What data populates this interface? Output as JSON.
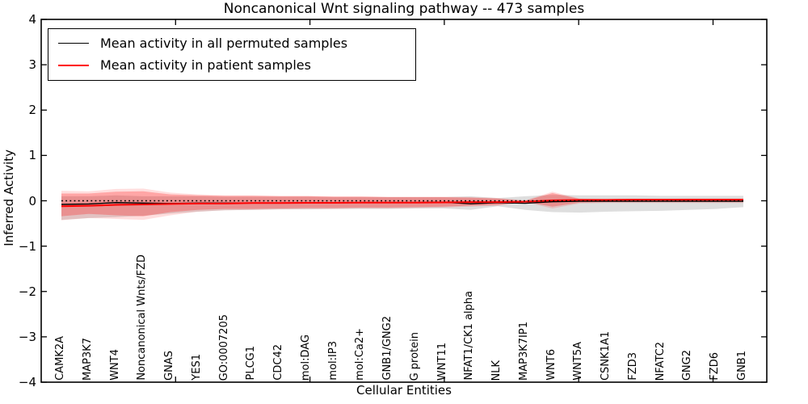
{
  "figure": {
    "title": "Noncanonical Wnt signaling pathway -- 473 samples",
    "xlabel": "Cellular Entities",
    "ylabel": "Inferred Activity"
  },
  "legend": {
    "entries": [
      {
        "label": "Mean activity in all permuted samples",
        "color": "#000000"
      },
      {
        "label": "Mean activity in patient samples",
        "color": "#ff0000"
      }
    ]
  },
  "chart_data": {
    "type": "line",
    "title": "Noncanonical Wnt signaling pathway -- 473 samples",
    "xlabel": "Cellular Entities",
    "ylabel": "Inferred Activity",
    "ylim": [
      -4,
      4
    ],
    "yticks": [
      4,
      3,
      2,
      1,
      0,
      -1,
      -2,
      -3,
      -4
    ],
    "grid": false,
    "legend_position": "upper left",
    "categories": [
      "CAMK2A",
      "MAP3K7",
      "WNT4",
      "Noncanonical Wnts/FZD",
      "GNAS",
      "YES1",
      "GO:0007205",
      "PLCG1",
      "CDC42",
      "mol:DAG",
      "mol:IP3",
      "mol:Ca2+",
      "GNB1/GNG2",
      "G protein",
      "WNT11",
      "NFAT1/CK1 alpha",
      "NLK",
      "MAP3K7IP1",
      "WNT6",
      "WNT5A",
      "CSNK1A1",
      "FZD3",
      "NFATC2",
      "GNG2",
      "FZD6",
      "GNB1"
    ],
    "baseline": {
      "name": "zero-reference",
      "value": 0,
      "style": "dotted",
      "color": "#000000"
    },
    "series": [
      {
        "name": "Mean activity in all permuted samples",
        "color": "#000000",
        "width": 1.4,
        "values": [
          -0.08,
          -0.07,
          -0.04,
          -0.05,
          -0.06,
          -0.05,
          -0.05,
          -0.05,
          -0.05,
          -0.045,
          -0.04,
          -0.04,
          -0.04,
          -0.04,
          -0.03,
          -0.065,
          -0.04,
          -0.055,
          -0.02,
          -0.01,
          -0.01,
          -0.01,
          -0.01,
          -0.01,
          -0.01,
          -0.01
        ]
      },
      {
        "name": "Mean activity in patient samples",
        "color": "#ff0000",
        "width": 2,
        "values": [
          -0.12,
          -0.11,
          -0.09,
          -0.08,
          -0.07,
          -0.06,
          -0.06,
          -0.05,
          -0.05,
          -0.045,
          -0.045,
          -0.04,
          -0.04,
          -0.04,
          -0.035,
          -0.03,
          -0.03,
          -0.02,
          0.01,
          0.02,
          0.02,
          0.025,
          0.025,
          0.025,
          0.025,
          0.025
        ]
      }
    ],
    "bands": [
      {
        "name": "permuted-samples-range",
        "color": "#000000",
        "alpha": 0.13,
        "high": [
          0.1,
          0.1,
          0.12,
          0.1,
          0.1,
          0.1,
          0.09,
          0.09,
          0.09,
          0.09,
          0.08,
          0.08,
          0.08,
          0.08,
          0.08,
          0.1,
          0.06,
          0.1,
          0.13,
          0.12,
          0.12,
          0.12,
          0.11,
          0.11,
          0.11,
          0.11
        ],
        "low": [
          -0.42,
          -0.38,
          -0.36,
          -0.33,
          -0.28,
          -0.24,
          -0.21,
          -0.2,
          -0.19,
          -0.19,
          -0.18,
          -0.18,
          -0.18,
          -0.17,
          -0.17,
          -0.2,
          -0.12,
          -0.2,
          -0.25,
          -0.26,
          -0.24,
          -0.23,
          -0.22,
          -0.2,
          -0.18,
          -0.14
        ]
      },
      {
        "name": "patient-samples-outer-range",
        "color": "#ff0000",
        "alpha": 0.13,
        "high": [
          0.22,
          0.21,
          0.26,
          0.27,
          0.18,
          0.14,
          0.12,
          0.12,
          0.11,
          0.11,
          0.1,
          0.1,
          0.09,
          0.09,
          0.09,
          0.08,
          0.06,
          0.01,
          0.2,
          0.05,
          0.04,
          0.04,
          0.04,
          0.05,
          0.05,
          0.05
        ],
        "low": [
          -0.43,
          -0.38,
          -0.4,
          -0.42,
          -0.32,
          -0.24,
          -0.21,
          -0.2,
          -0.19,
          -0.18,
          -0.18,
          -0.17,
          -0.17,
          -0.16,
          -0.15,
          -0.13,
          -0.11,
          -0.03,
          -0.17,
          -0.06,
          -0.05,
          -0.05,
          -0.05,
          -0.05,
          -0.05,
          -0.05
        ]
      },
      {
        "name": "patient-samples-range",
        "color": "#ff0000",
        "alpha": 0.25,
        "high": [
          0.16,
          0.16,
          0.2,
          0.21,
          0.14,
          0.12,
          0.11,
          0.11,
          0.1,
          0.1,
          0.09,
          0.09,
          0.08,
          0.08,
          0.08,
          0.07,
          0.05,
          0.0,
          0.17,
          0.04,
          0.03,
          0.03,
          0.03,
          0.04,
          0.04,
          0.04
        ],
        "low": [
          -0.34,
          -0.29,
          -0.32,
          -0.34,
          -0.25,
          -0.2,
          -0.18,
          -0.18,
          -0.17,
          -0.16,
          -0.16,
          -0.15,
          -0.15,
          -0.14,
          -0.13,
          -0.11,
          -0.09,
          -0.02,
          -0.13,
          -0.04,
          -0.03,
          -0.03,
          -0.03,
          -0.03,
          -0.03,
          -0.03
        ]
      }
    ]
  }
}
